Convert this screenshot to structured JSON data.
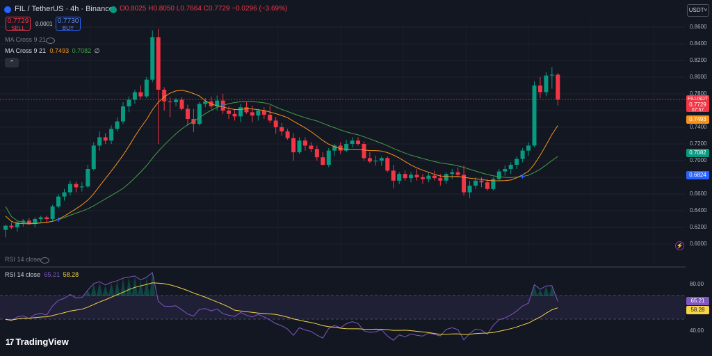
{
  "header": {
    "symbol": "FIL / TetherUS · 4h · Binance",
    "ohlc": "O0.8025 H0.8050 L0.7664 C0.7729 −0.0296 (−3.69%)",
    "sell_price": "0.7729",
    "sell_label": "SELL",
    "spread": "0.0001",
    "buy_price": "0.7730",
    "buy_label": "BUY",
    "currency": "USDT"
  },
  "indicators": {
    "ma_cross_hidden": "MA Cross 9 21",
    "ma_cross": "MA Cross 9 21",
    "ma_fast_value": "0.7493",
    "ma_slow_value": "0.7082",
    "ma_symbol": "∅",
    "rsi_hidden": "RSI 14 close",
    "rsi": "RSI 14 close",
    "rsi_value": "65.21",
    "rsi_ma_value": "58.28"
  },
  "price_axis": {
    "labels": [
      "0.8600",
      "0.8400",
      "0.8200",
      "0.8000",
      "0.7800",
      "0.7600",
      "0.7400",
      "0.7200",
      "0.7000",
      "0.6800",
      "0.6600",
      "0.6400",
      "0.6200",
      "0.6000"
    ],
    "last_price_tag": {
      "symbol": "FILUSDT",
      "price": "0.7729",
      "countdown": "07:57"
    },
    "tags": [
      {
        "value": "0.7493",
        "color": "#f7931a"
      },
      {
        "value": "0.7082",
        "color": "#089981"
      },
      {
        "value": "0.6824",
        "color": "#2962ff"
      }
    ]
  },
  "rsi_axis": {
    "labels": [
      "80.00",
      "40.00"
    ],
    "tags": [
      {
        "value": "65.21",
        "color": "#7e57c2"
      },
      {
        "value": "58.28",
        "color": "#f5d547"
      }
    ]
  },
  "logo": {
    "text": "TradingView",
    "mark": "17"
  },
  "colors": {
    "up": "#089981",
    "down": "#f23645",
    "ma_fast": "#f7931a",
    "ma_slow": "#43a047",
    "rsi": "#7e57c2",
    "rsi_ma": "#f5d547"
  },
  "chart_data": {
    "type": "candlestick",
    "interval": "4h",
    "ylim": [
      0.6,
      0.86
    ],
    "candles": [
      [
        0.617,
        0.623,
        0.608,
        0.622
      ],
      [
        0.622,
        0.626,
        0.618,
        0.62
      ],
      [
        0.62,
        0.628,
        0.615,
        0.626
      ],
      [
        0.626,
        0.63,
        0.621,
        0.628
      ],
      [
        0.628,
        0.631,
        0.623,
        0.624
      ],
      [
        0.624,
        0.632,
        0.62,
        0.63
      ],
      [
        0.63,
        0.634,
        0.626,
        0.632
      ],
      [
        0.632,
        0.634,
        0.625,
        0.63
      ],
      [
        0.63,
        0.647,
        0.628,
        0.645
      ],
      [
        0.645,
        0.66,
        0.643,
        0.657
      ],
      [
        0.657,
        0.666,
        0.652,
        0.662
      ],
      [
        0.662,
        0.676,
        0.658,
        0.672
      ],
      [
        0.672,
        0.675,
        0.662,
        0.668
      ],
      [
        0.668,
        0.674,
        0.663,
        0.669
      ],
      [
        0.669,
        0.695,
        0.667,
        0.69
      ],
      [
        0.69,
        0.722,
        0.688,
        0.718
      ],
      [
        0.718,
        0.735,
        0.712,
        0.728
      ],
      [
        0.728,
        0.733,
        0.72,
        0.724
      ],
      [
        0.724,
        0.742,
        0.72,
        0.738
      ],
      [
        0.738,
        0.752,
        0.735,
        0.747
      ],
      [
        0.747,
        0.77,
        0.744,
        0.765
      ],
      [
        0.765,
        0.777,
        0.758,
        0.773
      ],
      [
        0.773,
        0.785,
        0.768,
        0.782
      ],
      [
        0.782,
        0.79,
        0.774,
        0.777
      ],
      [
        0.777,
        0.8,
        0.775,
        0.797
      ],
      [
        0.797,
        0.856,
        0.794,
        0.848
      ],
      [
        0.848,
        0.858,
        0.72,
        0.785
      ],
      [
        0.785,
        0.788,
        0.76,
        0.771
      ],
      [
        0.771,
        0.776,
        0.752,
        0.77
      ],
      [
        0.77,
        0.775,
        0.765,
        0.773
      ],
      [
        0.773,
        0.776,
        0.76,
        0.762
      ],
      [
        0.762,
        0.767,
        0.742,
        0.75
      ],
      [
        0.75,
        0.762,
        0.734,
        0.744
      ],
      [
        0.744,
        0.77,
        0.742,
        0.768
      ],
      [
        0.768,
        0.775,
        0.764,
        0.771
      ],
      [
        0.771,
        0.777,
        0.762,
        0.765
      ],
      [
        0.765,
        0.778,
        0.76,
        0.772
      ],
      [
        0.772,
        0.78,
        0.756,
        0.76
      ],
      [
        0.76,
        0.765,
        0.75,
        0.756
      ],
      [
        0.756,
        0.762,
        0.748,
        0.753
      ],
      [
        0.753,
        0.768,
        0.746,
        0.764
      ],
      [
        0.764,
        0.77,
        0.756,
        0.758
      ],
      [
        0.758,
        0.766,
        0.746,
        0.754
      ],
      [
        0.754,
        0.762,
        0.748,
        0.76
      ],
      [
        0.76,
        0.764,
        0.75,
        0.755
      ],
      [
        0.755,
        0.766,
        0.745,
        0.748
      ],
      [
        0.748,
        0.752,
        0.732,
        0.74
      ],
      [
        0.74,
        0.745,
        0.73,
        0.735
      ],
      [
        0.735,
        0.738,
        0.725,
        0.727
      ],
      [
        0.727,
        0.733,
        0.7,
        0.71
      ],
      [
        0.71,
        0.728,
        0.708,
        0.724
      ],
      [
        0.724,
        0.728,
        0.712,
        0.718
      ],
      [
        0.718,
        0.722,
        0.71,
        0.714
      ],
      [
        0.714,
        0.718,
        0.7,
        0.704
      ],
      [
        0.704,
        0.71,
        0.694,
        0.695
      ],
      [
        0.695,
        0.715,
        0.692,
        0.712
      ],
      [
        0.712,
        0.72,
        0.706,
        0.718
      ],
      [
        0.718,
        0.722,
        0.708,
        0.712
      ],
      [
        0.712,
        0.725,
        0.71,
        0.72
      ],
      [
        0.72,
        0.728,
        0.716,
        0.724
      ],
      [
        0.724,
        0.728,
        0.718,
        0.72
      ],
      [
        0.72,
        0.723,
        0.7,
        0.703
      ],
      [
        0.703,
        0.71,
        0.697,
        0.699
      ],
      [
        0.699,
        0.706,
        0.694,
        0.7
      ],
      [
        0.7,
        0.705,
        0.694,
        0.703
      ],
      [
        0.703,
        0.705,
        0.686,
        0.688
      ],
      [
        0.688,
        0.695,
        0.667,
        0.676
      ],
      [
        0.676,
        0.686,
        0.672,
        0.684
      ],
      [
        0.684,
        0.688,
        0.676,
        0.679
      ],
      [
        0.679,
        0.686,
        0.674,
        0.683
      ],
      [
        0.683,
        0.69,
        0.676,
        0.68
      ],
      [
        0.68,
        0.684,
        0.672,
        0.678
      ],
      [
        0.678,
        0.686,
        0.674,
        0.682
      ],
      [
        0.682,
        0.688,
        0.676,
        0.679
      ],
      [
        0.679,
        0.684,
        0.67,
        0.676
      ],
      [
        0.676,
        0.686,
        0.672,
        0.684
      ],
      [
        0.684,
        0.69,
        0.678,
        0.686
      ],
      [
        0.686,
        0.692,
        0.68,
        0.683
      ],
      [
        0.683,
        0.694,
        0.658,
        0.662
      ],
      [
        0.662,
        0.676,
        0.655,
        0.67
      ],
      [
        0.67,
        0.68,
        0.666,
        0.676
      ],
      [
        0.676,
        0.68,
        0.668,
        0.674
      ],
      [
        0.674,
        0.678,
        0.664,
        0.666
      ],
      [
        0.666,
        0.68,
        0.664,
        0.678
      ],
      [
        0.678,
        0.69,
        0.676,
        0.687
      ],
      [
        0.687,
        0.694,
        0.682,
        0.69
      ],
      [
        0.69,
        0.698,
        0.684,
        0.695
      ],
      [
        0.695,
        0.705,
        0.69,
        0.702
      ],
      [
        0.702,
        0.715,
        0.698,
        0.712
      ],
      [
        0.712,
        0.722,
        0.706,
        0.718
      ],
      [
        0.718,
        0.795,
        0.716,
        0.79
      ],
      [
        0.79,
        0.8,
        0.775,
        0.782
      ],
      [
        0.782,
        0.806,
        0.777,
        0.802
      ],
      [
        0.802,
        0.812,
        0.786,
        0.803
      ],
      [
        0.803,
        0.805,
        0.766,
        0.773
      ]
    ],
    "ma_fast_last": 0.7493,
    "ma_slow_last": 0.7082,
    "rsi_last": 65.21,
    "rsi_ma_last": 58.28
  }
}
